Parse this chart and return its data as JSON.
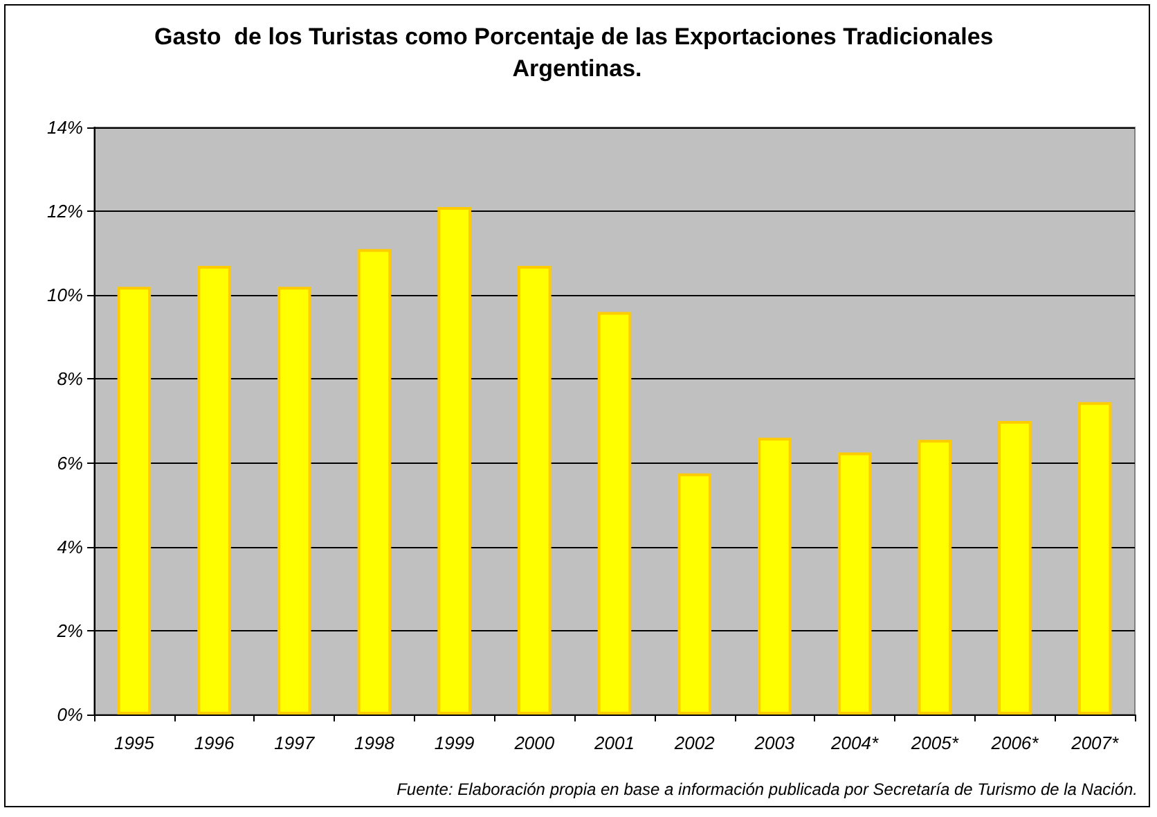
{
  "chart_data": {
    "type": "bar",
    "title": "Gasto  de los Turistas como Porcentaje de las Exportaciones Tradicionales Argentinas.",
    "categories": [
      "1995",
      "1996",
      "1997",
      "1998",
      "1999",
      "2000",
      "2001",
      "2002",
      "2003",
      "2004*",
      "2005*",
      "2006*",
      "2007*"
    ],
    "values": [
      10.2,
      10.7,
      10.2,
      11.1,
      12.1,
      10.7,
      9.6,
      5.75,
      6.6,
      6.25,
      6.55,
      7.0,
      7.45
    ],
    "color": "#ffff00",
    "ylim": [
      0,
      14
    ],
    "yticks": [
      {
        "value": 0,
        "label": "0%"
      },
      {
        "value": 2,
        "label": "2%"
      },
      {
        "value": 4,
        "label": "4%"
      },
      {
        "value": 6,
        "label": "6%"
      },
      {
        "value": 8,
        "label": "8%"
      },
      {
        "value": 10,
        "label": "10%"
      },
      {
        "value": 12,
        "label": "12%"
      },
      {
        "value": 14,
        "label": "14%"
      }
    ],
    "grid": "y",
    "annotations": [
      "Fuente: Elaboración propia en base a información publicada por Secretaría de Turismo de la Nación."
    ]
  }
}
